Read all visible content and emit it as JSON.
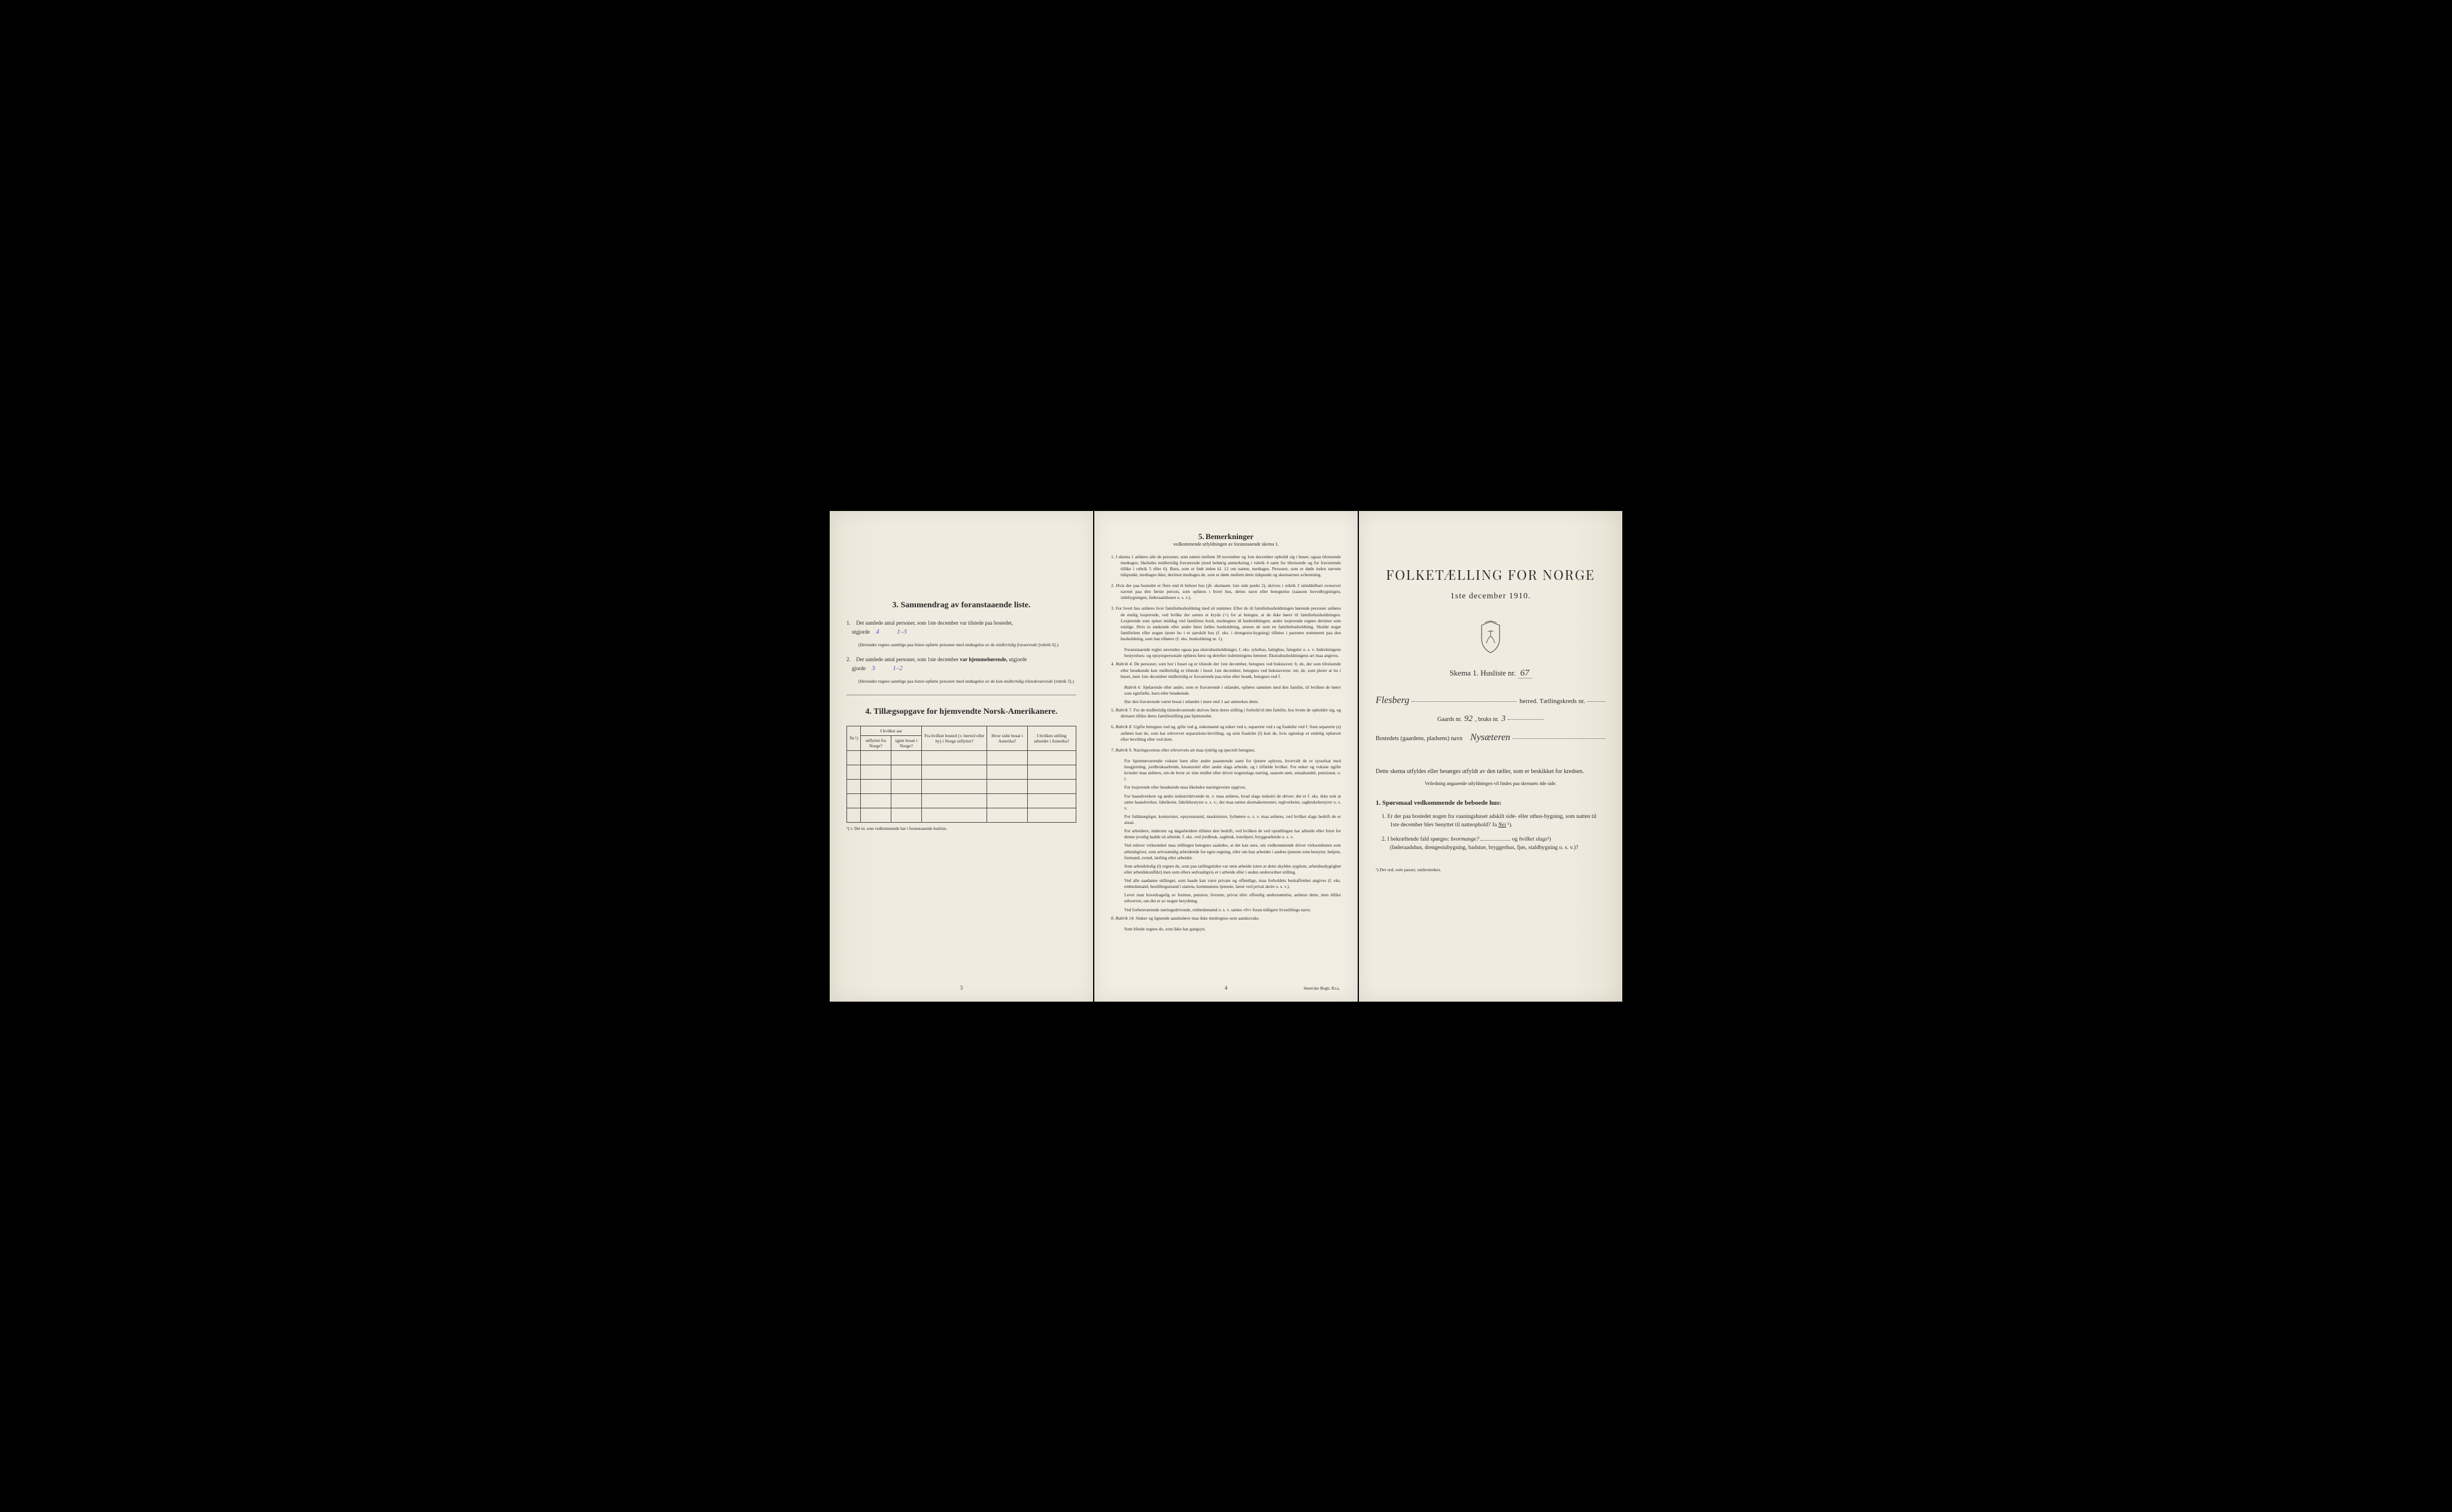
{
  "page1": {
    "section3": {
      "number": "3.",
      "title": "Sammendrag av foranstaaende liste.",
      "item1_prefix": "1.",
      "item1_text1": "Det samlede antal personer, som 1ste december var tilstede paa bostedet,",
      "item1_text2": "utgjorde",
      "item1_hw1": "4",
      "item1_hw2": "1–3",
      "item1_note": "(Herunder regnes samtlige paa listen opførte personer med undtagelse av de",
      "item1_note_em": "midlertidig fraværende",
      "item1_note_end": "[rubrik 6].)",
      "item2_prefix": "2.",
      "item2_text1": "Det samlede antal personer, som 1ste december",
      "item2_bold": "var hjemmehørende,",
      "item2_text2": "utgjorde",
      "item2_hw1": "3",
      "item2_hw2": "1–2",
      "item2_note": "(Herunder regnes samtlige paa listen opførte personer med undtagelse av de kun",
      "item2_note_em": "midlertidig tilstedeværende",
      "item2_note_end": "[rubrik 5].)"
    },
    "section4": {
      "number": "4.",
      "title": "Tillægsopgave for hjemvendte Norsk-Amerikanere.",
      "headers": {
        "nr": "Nr.¹)",
        "col1_line1": "I hvilket aar",
        "col1_line2": "utflyttet fra Norge?",
        "col1_line3": "igjen bosat i Norge?",
        "col2": "Fra hvilket bosted (ɔ: herred eller by) i Norge utflyttet?",
        "col3": "Hvor sidst bosat i Amerika?",
        "col4": "I hvilken stilling arbeidet i Amerika?"
      },
      "footnote": "¹) ɔ: Det nr. som vedkommende har i foranstaaende husliste."
    },
    "pagenum": "3"
  },
  "page2": {
    "title_num": "5.",
    "title_word": "Bemerkninger",
    "subtitle": "vedkommende utfyldningen av foranstaaende skema 1.",
    "items": [
      {
        "n": "1.",
        "text": "I skema 1 anføres alle de personer, som natten mellem 30 november og 1ste december opholdt sig i huset; ogsaa tilreisende medtages; likeledes midlertidig fraværende (med behørig anmerkning i rubrik 4 samt for tilreisende og for fraværende tillike i rubrik 5 eller 6). Barn, som er født inden kl. 12 om natten, medtages. Personer, som er døde inden nævnte tidspunkt, medtages ikke; derimot medtages de, som er døde mellem dette tidspunkt og skemaernes avhentning."
      },
      {
        "n": "2.",
        "text": "Hvis der paa bostedet er flere end ét beboet hus (jfr. skemaets 1ste side punkt 2), skrives i rubrik 2 umiddelbart ovenover navnet paa den første person, som opføres i hvert hus, dettes navn eller betegnelse (saasom hovedbygningen, sidebygningen, føderaadshuset o. s. v.)."
      },
      {
        "n": "3.",
        "text": "For hvert hus anføres hver familiehusholdning med sit nummer. Efter de til familiehusholdningen hørende personer anføres de enslig losjerende, ved hvilke der sættes et kryds (×) for at betegne, at de ikke hører til familiehusholdningen. Losjerende som spiser middag ved familiens bord, medregnes til husholdningen; andre losjerende regnes derimot som enslige. Hvis to søskende eller andre fører fælles husholdning, ansees de som en familiehusholdning. Skulde noget familielem eller nogen tjener bo i et særskilt hus (f. eks. i drengestu-bygning) tilføies i parentes nummeret paa den husholdning, som han tilhører (f. eks. husholdning nr. 1)."
      },
      {
        "n": "",
        "text": "Foranstaaende regler anvendes ogsaa paa ekstrahusholdninger, f. eks. sykehus, fattighus, fængsler o. s. v. Indretningens bestyrelses- og opsynspersonale opføres først og derefter indretningens lemmer. Ekstrahusholdningens art maa angives."
      },
      {
        "n": "4.",
        "label": "Rubrik 4.",
        "text": "De personer, som bor i huset og er tilstede der 1ste december, betegnes ved bokstaven: b; de, der som tilreisende eller besøkende kun midlertidig er tilstede i huset 1ste december, betegnes ved bokstaverne: mt; de, som pleier at bo i huset, men 1ste december midlertidig er fraværende paa reise eller besøk, betegnes ved f."
      },
      {
        "n": "",
        "label": "Rubrik 6.",
        "text": "Sjøfarende eller andre, som er fraværende i utlandet, opføres sammen med den familie, til hvilken de hører som egtefælle, barn eller besøkende."
      },
      {
        "n": "",
        "text": "Har den fraværende været bosat i utlandet i mere end 1 aar anmerkes dette."
      },
      {
        "n": "5.",
        "label": "Rubrik 7.",
        "text": "For de midlertidig tilstedeværende skrives først deres stilling i forhold til den familie, hos hvem de opholder sig, og dernæst tillike deres familiestilling paa hjemstedet."
      },
      {
        "n": "6.",
        "label": "Rubrik 8.",
        "text": "Ugifte betegnes ved ug, gifte ved g, enkemænd og enker ved e, separerte ved s og fraskilte ved f. Som separerte (s) anføres kun de, som har erhvervet separations-bevilling, og som fraskilte (f) kun de, hvis egteskap er endelig ophævet efter bevilling eller ved dom."
      },
      {
        "n": "7.",
        "label": "Rubrik 9.",
        "text": "Næringsveiens eller erhvervets art maa tydelig og specielt betegnes."
      },
      {
        "n": "",
        "text": "For hjemmeværende voksne barn eller andre paarørende samt for tjenere oplyses, hvorvidt de er sysselsat med husgjerning, jordbruksarbeide, kreaturstel eller andet slags arbeide, og i tilfælde hvilket. For enker og voksne ugifte kvinder maa anføres, om de lever av sine midler eller driver nogenslags næring, saasom søm, smaahandel, pensionat, o. l."
      },
      {
        "n": "",
        "text": "For losjerende eller besøkende maa likeledes næringsveien opgives."
      },
      {
        "n": "",
        "text": "For haandverkere og andre industridrivende m. v. maa anføres, hvad slags industri de driver; det er f. eks. ikke nok at sætte haandverker, fabrikeier, fabrikbestyrer o. s. v.; der maa sættes skomakermester, teglverkeier, sagbruksbestyrer o. s. v."
      },
      {
        "n": "",
        "text": "For fuldmægtiger, kontorister, opsynsmænd, maskinister, fyrbøtere o. s. v. maa anføres, ved hvilket slags bedrift de er ansat."
      },
      {
        "n": "",
        "text": "For arbeidere, inderster og dagarbeidere tilføies den bedrift, ved hvilken de ved optællingen har arbeide eller forut for denne jevnlig hadde sit arbeide, f. eks. ved jordbruk, sagbruk, træsliperi, bryggearbeide o. s. v."
      },
      {
        "n": "",
        "text": "Ved enhver virksomhet maa stillingen betegnes saaledes, at det kan sees, om vedkommende driver virksomheten som arbeidsgiver, som selvstændig arbeidende for egen regning, eller om han arbeider i andres tjeneste som bestyrer, betjent, formand, svend, lærling eller arbeider."
      },
      {
        "n": "",
        "text": "Som arbeidsledig (l) regnes de, som paa tællingstiden var uten arbeide (uten at dette skyldes sygdom, arbeidsudygtighet eller arbeidskonflikt) men som ellers sedvanligvis er i arbeide eller i anden underordnet stilling."
      },
      {
        "n": "",
        "text": "Ved alle saadanne stillinger, som baade kan være private og offentlige, maa forholdets beskaffenhet angives (f. eks. embedsmand, bestillingsmand i statens, kommunens tjeneste, lærer ved privat skole o. s. v.)."
      },
      {
        "n": "",
        "text": "Lever man hovedsagelig av formue, pension, livrente, privat eller offentlig understøttelse, anføres dette, men tillike erhvervet, om det er av nogen betydning."
      },
      {
        "n": "",
        "text": "Ved forhenværende næringsdrivende, embedsmænd o. s. v. sættes «fv» foran tidligere livsstillings navn."
      },
      {
        "n": "8.",
        "label": "Rubrik 14.",
        "text": "Sinker og lignende aandssløve maa ikke medregnes som aandssvake."
      },
      {
        "n": "",
        "text": "Som blinde regnes de, som ikke har gangsyn."
      }
    ],
    "pagenum": "4",
    "printer": "Steen'ske Bogtr. Kr.a."
  },
  "page3": {
    "title": "FOLKETÆLLING FOR NORGE",
    "subtitle": "1ste december 1910.",
    "skema_label": "Skema 1.  Husliste nr.",
    "husliste_nr": "67",
    "herred_label": "herred.  Tællingskreds nr.",
    "herred_hw": "Flesberg",
    "kreds_hw": "",
    "gaards_label": "Gaards nr.",
    "gaards_hw": "92",
    "bruks_label": ", bruks nr.",
    "bruks_hw": "3",
    "bosted_label": "Bostedets (gaardens, pladsens) navn",
    "bosted_hw": "Nysæteren",
    "desc1": "Dette skema utfyldes eller besørges utfyldt av den tæller, som er beskikket for kredsen.",
    "veiledning": "Veiledning angaaende utfyldningen vil findes paa skemaets 4de side.",
    "q_header": "1. Spørsmaal vedkommende de beboede hus:",
    "q1_num": "1.",
    "q1_text": "Er der paa bostedet nogen fra vaaningshuset adskilt side- eller uthus-bygning, som natten til 1ste december blev benyttet til natteophold?  Ja",
    "q1_answer": "Nei",
    "q1_sup": "¹).",
    "q2_num": "2.",
    "q2_text": "I bekræftende fald spørges:",
    "q2_em1": "hvormange?",
    "q2_text2": "og",
    "q2_em2": "hvilket slags",
    "q2_sup": "¹)",
    "q2_text3": "(føderaadshus, drengestubygning, badstue, bryggerhus, fjøs, staldbygning o. s. v.)?",
    "footnote": "¹) Det ord, som passer, understrekes."
  }
}
